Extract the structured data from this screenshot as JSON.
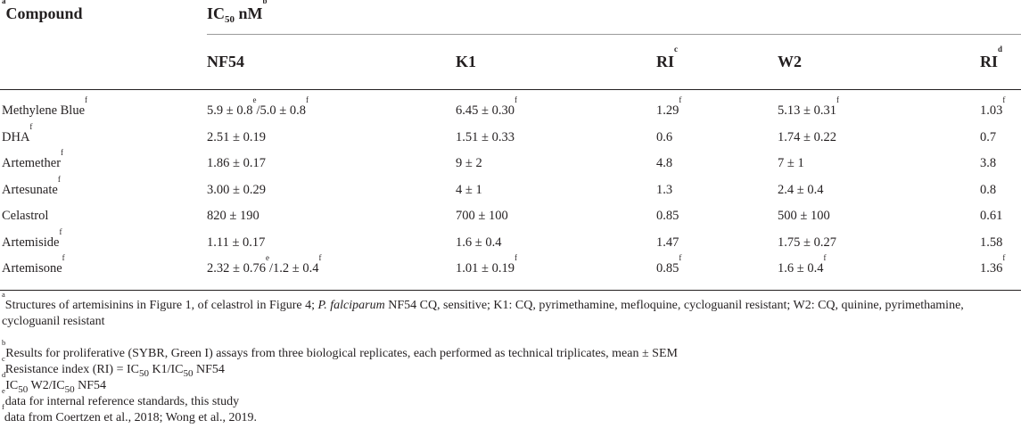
{
  "header": {
    "compound_mark": "a",
    "compound": "Compound",
    "ic50_base": "IC",
    "ic50_sub": "50",
    "ic50_unit": " nM",
    "ic50_mark": "b",
    "columns": [
      {
        "text": "NF54",
        "mark": ""
      },
      {
        "text": "K1",
        "mark": ""
      },
      {
        "text": "RI",
        "mark": "c"
      },
      {
        "text": "W2",
        "mark": ""
      },
      {
        "text": "RI",
        "mark": "d"
      }
    ]
  },
  "rows": [
    {
      "name": "Methylene Blue",
      "name_mark": "f",
      "nf54": [
        {
          "t": "5.9 ± 0.8",
          "m": "e"
        },
        {
          "t": "/5.0 ± 0.8",
          "m": "f"
        }
      ],
      "k1": [
        {
          "t": "6.45 ± 0.30",
          "m": "f"
        }
      ],
      "ri_c": [
        {
          "t": "1.29",
          "m": "f"
        }
      ],
      "w2": [
        {
          "t": "5.13 ± 0.31",
          "m": "f"
        }
      ],
      "ri_d": [
        {
          "t": "1.03",
          "m": "f"
        }
      ]
    },
    {
      "name": "DHA",
      "name_mark": "f",
      "nf54": [
        {
          "t": "2.51 ± 0.19",
          "m": ""
        }
      ],
      "k1": [
        {
          "t": "1.51 ± 0.33",
          "m": ""
        }
      ],
      "ri_c": [
        {
          "t": "0.6",
          "m": ""
        }
      ],
      "w2": [
        {
          "t": "1.74 ± 0.22",
          "m": ""
        }
      ],
      "ri_d": [
        {
          "t": "0.7",
          "m": ""
        }
      ]
    },
    {
      "name": "Artemether",
      "name_mark": "f",
      "nf54": [
        {
          "t": "1.86 ± 0.17",
          "m": ""
        }
      ],
      "k1": [
        {
          "t": "9 ± 2",
          "m": ""
        }
      ],
      "ri_c": [
        {
          "t": "4.8",
          "m": ""
        }
      ],
      "w2": [
        {
          "t": "7 ± 1",
          "m": ""
        }
      ],
      "ri_d": [
        {
          "t": "3.8",
          "m": ""
        }
      ]
    },
    {
      "name": "Artesunate",
      "name_mark": "f",
      "nf54": [
        {
          "t": "3.00 ± 0.29",
          "m": ""
        }
      ],
      "k1": [
        {
          "t": "4 ± 1",
          "m": ""
        }
      ],
      "ri_c": [
        {
          "t": "1.3",
          "m": ""
        }
      ],
      "w2": [
        {
          "t": "2.4 ± 0.4",
          "m": ""
        }
      ],
      "ri_d": [
        {
          "t": "0.8",
          "m": ""
        }
      ]
    },
    {
      "name": "Celastrol",
      "name_mark": "",
      "nf54": [
        {
          "t": "820 ± 190",
          "m": ""
        }
      ],
      "k1": [
        {
          "t": "700 ± 100",
          "m": ""
        }
      ],
      "ri_c": [
        {
          "t": "0.85",
          "m": ""
        }
      ],
      "w2": [
        {
          "t": "500 ± 100",
          "m": ""
        }
      ],
      "ri_d": [
        {
          "t": "0.61",
          "m": ""
        }
      ]
    },
    {
      "name": "Artemiside",
      "name_mark": "f",
      "nf54": [
        {
          "t": "1.11 ± 0.17",
          "m": ""
        }
      ],
      "k1": [
        {
          "t": "1.6 ± 0.4",
          "m": ""
        }
      ],
      "ri_c": [
        {
          "t": "1.47",
          "m": ""
        }
      ],
      "w2": [
        {
          "t": "1.75 ± 0.27",
          "m": ""
        }
      ],
      "ri_d": [
        {
          "t": "1.58",
          "m": ""
        }
      ]
    },
    {
      "name": "Artemisone",
      "name_mark": "f",
      "nf54": [
        {
          "t": "2.32 ± 0.76",
          "m": "e"
        },
        {
          "t": "/1.2 ± 0.4",
          "m": "f"
        }
      ],
      "k1": [
        {
          "t": "1.01 ± 0.19",
          "m": "f"
        }
      ],
      "ri_c": [
        {
          "t": "0.85",
          "m": "f"
        }
      ],
      "w2": [
        {
          "t": "1.6 ± 0.4",
          "m": "f"
        }
      ],
      "ri_d": [
        {
          "t": "1.36",
          "m": "f"
        }
      ]
    }
  ],
  "footnotes": [
    {
      "mark": "a",
      "parts": [
        {
          "t": "Structures of artemisinins in Figure 1, of celastrol in Figure 4; ",
          "i": false
        },
        {
          "t": "P. falciparum",
          "i": true
        },
        {
          "t": " NF54 CQ, sensitive; K1: CQ, pyrimethamine, mefloquine, cycloguanil resistant; W2: CQ, quinine, pyrimethamine, cycloguanil resistant",
          "i": false
        }
      ]
    },
    {
      "mark": "b",
      "parts": [
        {
          "t": "Results for proliferative (SYBR, Green I) assays from three biological replicates, each performed as technical triplicates, mean ± SEM",
          "i": false
        }
      ]
    },
    {
      "mark": "c",
      "parts": [
        {
          "t": "Resistance index (RI) = IC",
          "i": false
        },
        {
          "t": "50",
          "i": false,
          "sub": true
        },
        {
          "t": " K1/IC",
          "i": false
        },
        {
          "t": "50",
          "i": false,
          "sub": true
        },
        {
          "t": " NF54",
          "i": false
        }
      ]
    },
    {
      "mark": "d",
      "parts": [
        {
          "t": "IC",
          "i": false
        },
        {
          "t": "50",
          "i": false,
          "sub": true
        },
        {
          "t": " W2/IC",
          "i": false
        },
        {
          "t": "50",
          "i": false,
          "sub": true
        },
        {
          "t": " NF54",
          "i": false
        }
      ]
    },
    {
      "mark": "e",
      "parts": [
        {
          "t": "data for internal reference standards, this study",
          "i": false
        }
      ]
    },
    {
      "mark": "f",
      "parts": [
        {
          "t": "data from Coertzen et al., 2018; Wong et al., 2019.",
          "i": false
        }
      ]
    }
  ]
}
